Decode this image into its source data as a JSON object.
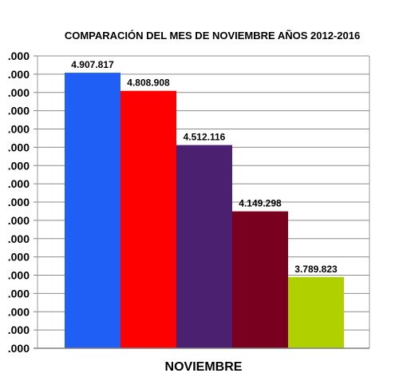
{
  "chart_data": {
    "type": "bar",
    "title": "COMPARACIÓN DEL MES DE NOVIEMBRE AÑOS 2012-2016",
    "category_label": "NOVIEMBRE",
    "y_tick_labels": [
      ".000",
      ".000",
      ".000",
      ".000",
      ".000",
      ".000",
      ".000",
      ".000",
      ".000",
      ".000",
      ".000",
      ".000",
      ".000",
      ".000",
      ".000",
      ".000",
      ".000"
    ],
    "ylim": [
      3400000,
      5000000
    ],
    "grid": true,
    "values": [
      4907817,
      4808908,
      4512116,
      4149298,
      3789823
    ],
    "labels": [
      "4.907.817",
      "4.808.908",
      "4.512.116",
      "4.149.298",
      "3.789.823"
    ],
    "colors": [
      "#1f5ff5",
      "#ff0000",
      "#4b2070",
      "#7a0020",
      "#b0d000"
    ]
  }
}
